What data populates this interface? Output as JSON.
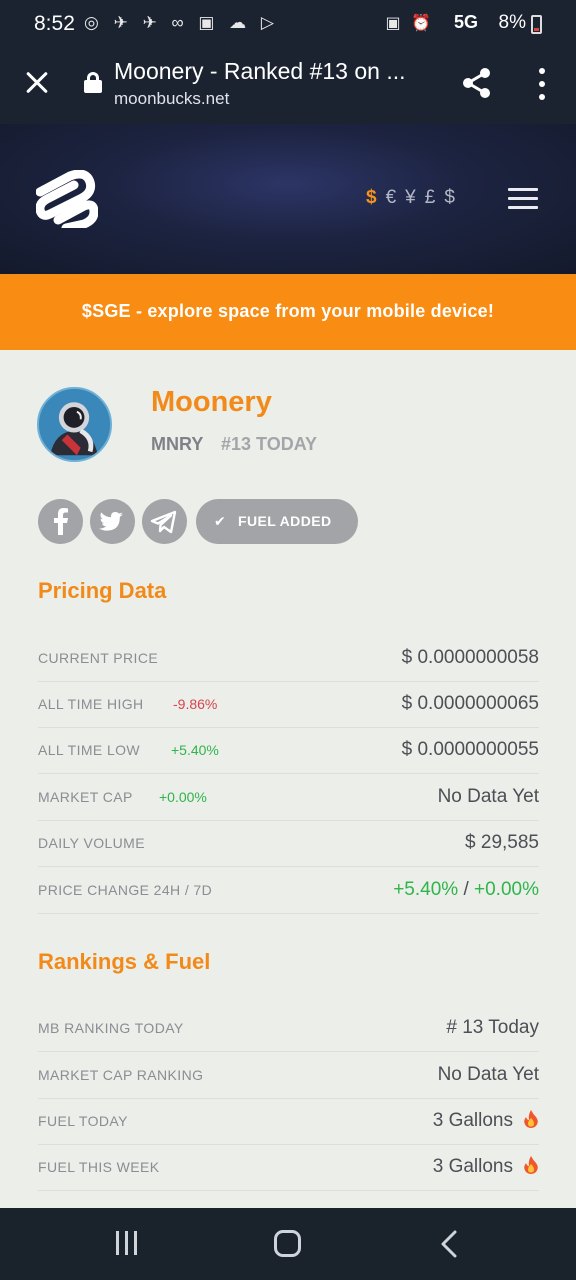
{
  "status_bar": {
    "time": "8:52",
    "left_icons": "◎ ✈ ✈ ∞ ▣ ☁ ▷",
    "right_icons": "▣ ⏰",
    "network": "5G",
    "battery": "8%"
  },
  "browser": {
    "title": "Moonery - Ranked #13 on ...",
    "url": "moonbucks.net"
  },
  "header": {
    "currencies": [
      "$",
      "€",
      "¥",
      "£",
      "$"
    ],
    "accent_color": "#f7931a"
  },
  "promo": {
    "text": "$SGE - explore space from your mobile device!"
  },
  "coin": {
    "name": "Moonery",
    "ticker": "MNRY",
    "rank": "#13 TODAY",
    "fuel_badge": "FUEL ADDED"
  },
  "pricing": {
    "title": "Pricing Data",
    "rows": [
      {
        "label": "CURRENT PRICE",
        "change": "",
        "value": "$ 0.0000000058"
      },
      {
        "label": "ALL TIME HIGH",
        "change": "-9.86%",
        "value": "$ 0.0000000065"
      },
      {
        "label": "ALL TIME LOW",
        "change": "+5.40%",
        "value": "$ 0.0000000055"
      },
      {
        "label": "MARKET CAP",
        "change": "+0.00%",
        "value": "No Data Yet"
      },
      {
        "label": "DAILY VOLUME",
        "change": "",
        "value": "$ 29,585"
      },
      {
        "label": "PRICE CHANGE 24H / 7D",
        "change": "",
        "value_24h": "+5.40%",
        "separator": "/",
        "value_7d": "+0.00%"
      }
    ]
  },
  "rankings": {
    "title": "Rankings & Fuel",
    "rows": [
      {
        "label": "MB RANKING TODAY",
        "value": "# 13 Today"
      },
      {
        "label": "MARKET CAP RANKING",
        "value": "No Data Yet"
      },
      {
        "label": "FUEL TODAY",
        "value": "3 Gallons"
      },
      {
        "label": "FUEL THIS WEEK",
        "value": "3 Gallons"
      }
    ]
  }
}
